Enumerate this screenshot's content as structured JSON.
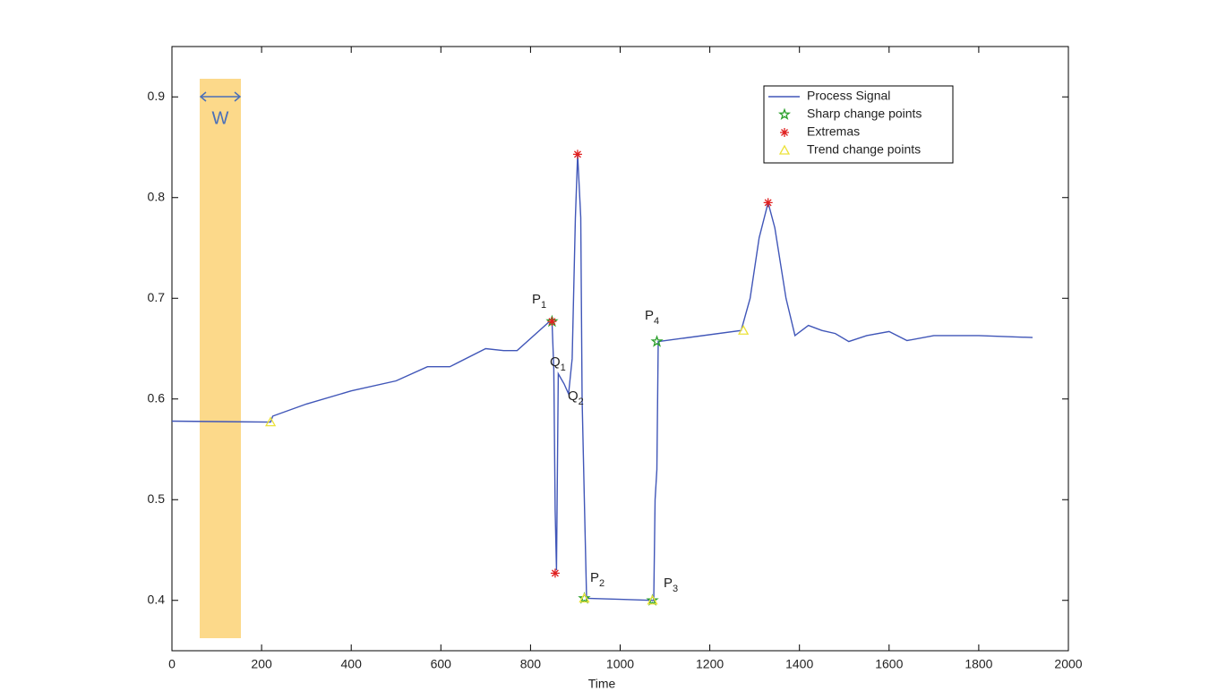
{
  "chart_data": {
    "type": "line",
    "xlabel": "Time",
    "xlim": [
      0,
      2000
    ],
    "ylim": [
      0.35,
      0.95
    ],
    "xticks": [
      0,
      200,
      400,
      600,
      800,
      1000,
      1200,
      1400,
      1600,
      1800,
      2000
    ],
    "yticks": [
      0.4,
      0.5,
      0.6,
      0.7,
      0.8,
      0.9
    ],
    "grid": false,
    "legend": "upper right",
    "window_label": "W",
    "series": [
      {
        "name": "Process Signal",
        "color": "#4056b8",
        "marker": "line",
        "x": [
          0,
          220,
          225,
          300,
          400,
          500,
          570,
          620,
          700,
          740,
          770,
          840,
          848,
          852,
          855,
          858,
          862,
          875,
          885,
          893,
          900,
          905,
          912,
          915,
          920,
          925,
          1000,
          1075,
          1078,
          1082,
          1085,
          1270,
          1290,
          1310,
          1330,
          1345,
          1370,
          1390,
          1420,
          1450,
          1480,
          1510,
          1550,
          1600,
          1640,
          1700,
          1800,
          1920
        ],
        "values": [
          0.578,
          0.577,
          0.583,
          0.595,
          0.608,
          0.618,
          0.632,
          0.632,
          0.65,
          0.648,
          0.648,
          0.676,
          0.677,
          0.63,
          0.49,
          0.43,
          0.625,
          0.615,
          0.605,
          0.64,
          0.78,
          0.843,
          0.78,
          0.6,
          0.5,
          0.402,
          0.401,
          0.4,
          0.5,
          0.53,
          0.657,
          0.668,
          0.7,
          0.76,
          0.795,
          0.77,
          0.7,
          0.663,
          0.673,
          0.668,
          0.665,
          0.657,
          0.663,
          0.667,
          0.658,
          0.663,
          0.663,
          0.661
        ]
      },
      {
        "name": "Sharp change points",
        "color": "#2ca02c",
        "marker": "pentagram",
        "x": [
          848,
          920,
          1072,
          1082
        ],
        "values": [
          0.677,
          0.402,
          0.4,
          0.657
        ]
      },
      {
        "name": "Extremas",
        "color": "#e02020",
        "marker": "asterisk",
        "x": [
          848,
          855,
          905,
          1330
        ],
        "values": [
          0.677,
          0.427,
          0.843,
          0.795
        ]
      },
      {
        "name": "Trend change points",
        "color": "#ece23a",
        "marker": "triangle",
        "x": [
          220,
          920,
          1072,
          1275
        ],
        "values": [
          0.577,
          0.402,
          0.4,
          0.668
        ]
      }
    ],
    "annotations": [
      {
        "text": "P",
        "sub": "1"
      },
      {
        "text": "Q",
        "sub": "1"
      },
      {
        "text": "Q",
        "sub": "2"
      },
      {
        "text": "P",
        "sub": "2"
      },
      {
        "text": "P",
        "sub": "3"
      },
      {
        "text": "P",
        "sub": "4"
      }
    ]
  }
}
